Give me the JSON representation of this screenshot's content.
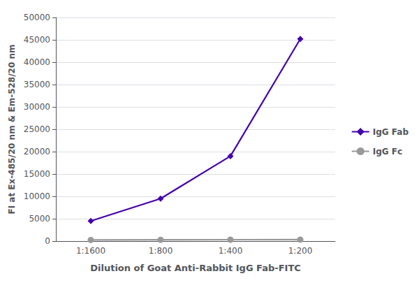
{
  "chart_data": {
    "type": "line",
    "categories": [
      "1:1600",
      "1:800",
      "1:400",
      "1:200"
    ],
    "series": [
      {
        "name": "IgG Fab",
        "color": "#4400AA",
        "marker": "diamond",
        "values": [
          4500,
          9500,
          19000,
          45200
        ]
      },
      {
        "name": "IgG Fc",
        "color": "#999999",
        "marker": "circle",
        "values": [
          250,
          280,
          310,
          320
        ]
      }
    ],
    "xlabel": "Dilution of Goat Anti-Rabbit IgG Fab-FITC",
    "ylabel": "FI at Ex-485/20 nm & Em-528/20 nm",
    "ylim": [
      0,
      50000
    ],
    "yticks": [
      0,
      5000,
      10000,
      15000,
      20000,
      25000,
      30000,
      35000,
      40000,
      45000,
      50000
    ],
    "grid": true,
    "legend": "right"
  }
}
